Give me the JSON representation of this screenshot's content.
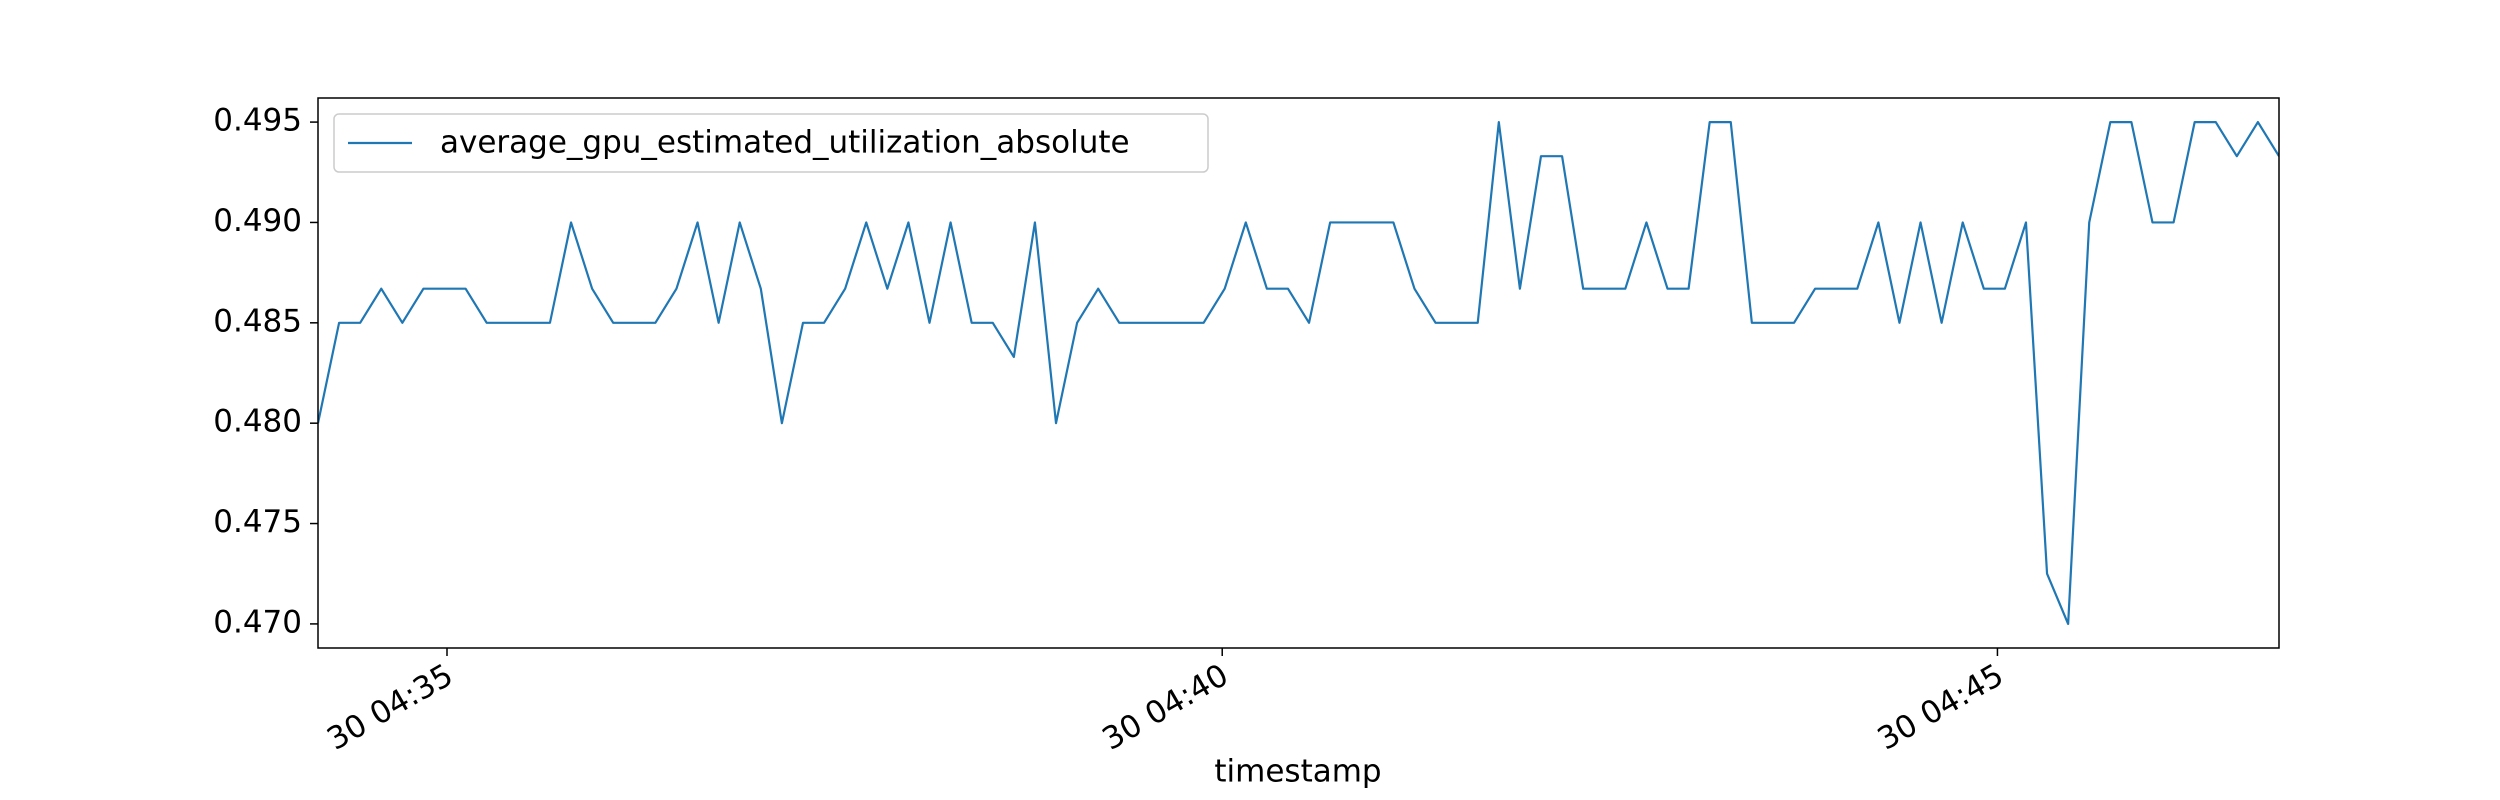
{
  "chart_data": {
    "type": "line",
    "x_label": "timestamp",
    "x": [
      34.168,
      34.304,
      34.44,
      34.576,
      34.712,
      34.848,
      34.984,
      35.12,
      35.256,
      35.392,
      35.528,
      35.664,
      35.8,
      35.936,
      36.072,
      36.208,
      36.344,
      36.48,
      36.616,
      36.752,
      36.888,
      37.024,
      37.16,
      37.296,
      37.432,
      37.568,
      37.704,
      37.84,
      37.976,
      38.112,
      38.248,
      38.384,
      38.52,
      38.656,
      38.792,
      38.928,
      39.064,
      39.2,
      39.336,
      39.472,
      39.608,
      39.744,
      39.88,
      40.016,
      40.152,
      40.288,
      40.424,
      40.56,
      40.696,
      40.832,
      40.968,
      41.104,
      41.24,
      41.376,
      41.512,
      41.648,
      41.784,
      41.92,
      42.056,
      42.192,
      42.328,
      42.464,
      42.6,
      42.736,
      42.872,
      43.008,
      43.144,
      43.28,
      43.416,
      43.552,
      43.688,
      43.824,
      43.96,
      44.096,
      44.232,
      44.368,
      44.504,
      44.64,
      44.776,
      44.912,
      45.048,
      45.184,
      45.32,
      45.456,
      45.592,
      45.728,
      45.864,
      46.0,
      46.136,
      46.272,
      46.408,
      46.544,
      46.68,
      46.816
    ],
    "series": [
      {
        "name": "average_gpu_estimated_utilization_absolute",
        "color": "#1f77b4",
        "values": [
          0.48,
          0.485,
          0.485,
          0.4867,
          0.485,
          0.4867,
          0.4867,
          0.4867,
          0.485,
          0.485,
          0.485,
          0.485,
          0.49,
          0.4867,
          0.485,
          0.485,
          0.485,
          0.4867,
          0.49,
          0.485,
          0.49,
          0.4867,
          0.48,
          0.485,
          0.485,
          0.4867,
          0.49,
          0.4867,
          0.49,
          0.485,
          0.49,
          0.485,
          0.485,
          0.4833,
          0.49,
          0.48,
          0.485,
          0.4867,
          0.485,
          0.485,
          0.485,
          0.485,
          0.485,
          0.4867,
          0.49,
          0.4867,
          0.4867,
          0.485,
          0.49,
          0.49,
          0.49,
          0.49,
          0.4867,
          0.485,
          0.485,
          0.485,
          0.495,
          0.4867,
          0.4933,
          0.4933,
          0.4867,
          0.4867,
          0.4867,
          0.49,
          0.4867,
          0.4867,
          0.495,
          0.495,
          0.485,
          0.485,
          0.485,
          0.4867,
          0.4867,
          0.4867,
          0.49,
          0.485,
          0.49,
          0.485,
          0.49,
          0.4867,
          0.4867,
          0.49,
          0.4725,
          0.47,
          0.49,
          0.495,
          0.495,
          0.49,
          0.49,
          0.495,
          0.495,
          0.4933,
          0.495,
          0.4933
        ]
      }
    ],
    "xlim": [
      34.168,
      46.816
    ],
    "xticks": [
      {
        "value": 35,
        "label": "30 04:35"
      },
      {
        "value": 40,
        "label": "30 04:40"
      },
      {
        "value": 45,
        "label": "30 04:45"
      }
    ],
    "ylim": [
      0.4688,
      0.4962
    ],
    "yticks": [
      {
        "value": 0.47,
        "label": "0.470"
      },
      {
        "value": 0.475,
        "label": "0.475"
      },
      {
        "value": 0.48,
        "label": "0.480"
      },
      {
        "value": 0.485,
        "label": "0.485"
      },
      {
        "value": 0.49,
        "label": "0.490"
      },
      {
        "value": 0.495,
        "label": "0.495"
      }
    ],
    "legend": "upper left",
    "grid": false
  }
}
